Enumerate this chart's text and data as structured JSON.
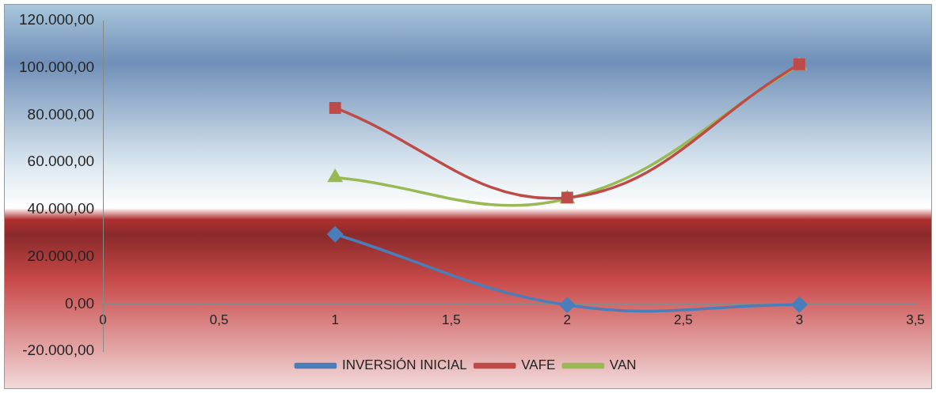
{
  "chart_data": {
    "type": "line",
    "x": [
      1,
      2,
      3
    ],
    "series": [
      {
        "name": "INVERSIÓN INICIAL",
        "color": "#4a7ebb",
        "marker": "diamond",
        "values": [
          29500,
          -500,
          -300
        ]
      },
      {
        "name": "VAFE",
        "color": "#be4b48",
        "marker": "square",
        "values": [
          83000,
          45000,
          101500
        ]
      },
      {
        "name": "VAN",
        "color": "#98b954",
        "marker": "triangle",
        "values": [
          53500,
          44500,
          101000
        ]
      }
    ],
    "xlim": [
      0,
      3.5
    ],
    "xticks": [
      0,
      {
        "value": 0.5,
        "label": "0,5"
      },
      1,
      {
        "value": 1.5,
        "label": "1,5"
      },
      2,
      {
        "value": 2.5,
        "label": "2,5"
      },
      3,
      {
        "value": 3.5,
        "label": "3,5"
      }
    ],
    "ylim": [
      -20000,
      120000
    ],
    "yticks": [
      {
        "value": -20000,
        "label": "-20.000,00"
      },
      {
        "value": 0,
        "label": "0,00"
      },
      {
        "value": 20000,
        "label": "20.000,00"
      },
      {
        "value": 40000,
        "label": "40.000,00"
      },
      {
        "value": 60000,
        "label": "60.000,00"
      },
      {
        "value": 80000,
        "label": "80.000,00"
      },
      {
        "value": 100000,
        "label": "100.000,00"
      },
      {
        "value": 120000,
        "label": "120.000,00"
      }
    ],
    "grid": false,
    "legend": "bottom"
  }
}
